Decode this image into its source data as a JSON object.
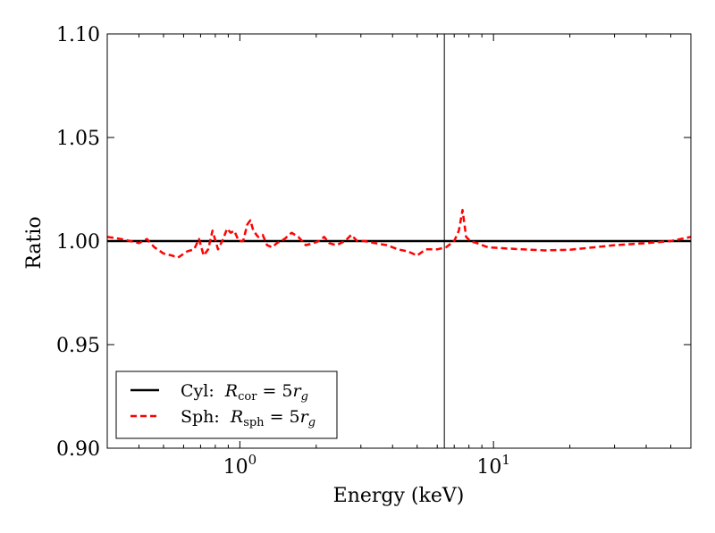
{
  "chart_data": {
    "type": "line",
    "xscale": "log",
    "xlim": [
      0.3,
      60
    ],
    "ylim": [
      0.9,
      1.1
    ],
    "xlabel": "Energy (keV)",
    "ylabel": "Ratio",
    "yticks": [
      0.9,
      0.95,
      1.0,
      1.05,
      1.1
    ],
    "ytick_labels": [
      "0.90",
      "0.95",
      "1.00",
      "1.05",
      "1.10"
    ],
    "xticks_major": [
      1,
      10
    ],
    "xtick_labels": [
      {
        "base": "10",
        "exp": "0"
      },
      {
        "base": "10",
        "exp": "1"
      }
    ],
    "vline_x": 6.4,
    "legend_position": "lower-left",
    "series": [
      {
        "name": "Cyl",
        "legend_prefix": "Cyl:",
        "legend_var": "R",
        "legend_sub": "cor",
        "legend_eq": "= 5",
        "legend_r": "r",
        "legend_g": "g",
        "color": "#000000",
        "style": "solid",
        "x": [
          0.3,
          60
        ],
        "y": [
          1.0,
          1.0
        ]
      },
      {
        "name": "Sph",
        "legend_prefix": "Sph:",
        "legend_var": "R",
        "legend_sub": "sph",
        "legend_eq": "= 5",
        "legend_r": "r",
        "legend_g": "g",
        "color": "#ff0000",
        "style": "dashed",
        "x": [
          0.3,
          0.34,
          0.37,
          0.4,
          0.43,
          0.46,
          0.5,
          0.54,
          0.57,
          0.62,
          0.66,
          0.69,
          0.72,
          0.75,
          0.78,
          0.82,
          0.86,
          0.89,
          0.92,
          0.95,
          0.99,
          1.03,
          1.07,
          1.1,
          1.13,
          1.18,
          1.23,
          1.28,
          1.34,
          1.4,
          1.5,
          1.6,
          1.7,
          1.82,
          1.95,
          2.05,
          2.15,
          2.25,
          2.4,
          2.6,
          2.75,
          2.9,
          3.1,
          3.4,
          3.8,
          4.2,
          4.6,
          5.0,
          5.4,
          6.0,
          6.5,
          7.0,
          7.3,
          7.55,
          7.8,
          8.1,
          8.6,
          9.5,
          11,
          13,
          16,
          20,
          25,
          30,
          40,
          50,
          60
        ],
        "y": [
          1.002,
          1.001,
          1.0,
          0.999,
          1.001,
          0.997,
          0.994,
          0.993,
          0.992,
          0.995,
          0.996,
          1.001,
          0.993,
          0.996,
          1.005,
          0.996,
          1.001,
          1.006,
          1.004,
          1.005,
          1.0,
          1.0,
          1.008,
          1.01,
          1.005,
          1.002,
          1.003,
          0.998,
          0.997,
          0.999,
          1.001,
          1.004,
          1.002,
          0.998,
          0.999,
          1.0,
          1.002,
          0.999,
          0.998,
          1.0,
          1.003,
          1.0,
          1.0,
          0.999,
          0.998,
          0.996,
          0.995,
          0.993,
          0.996,
          0.996,
          0.997,
          1.0,
          1.005,
          1.015,
          1.002,
          1.0,
          0.999,
          0.997,
          0.9965,
          0.996,
          0.9955,
          0.9958,
          0.997,
          0.998,
          0.999,
          1.0,
          1.002
        ]
      }
    ]
  }
}
